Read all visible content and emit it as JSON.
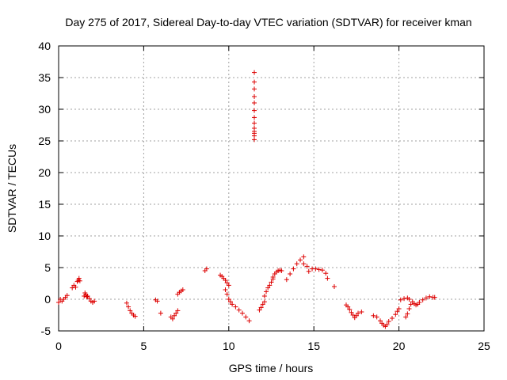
{
  "chart_data": {
    "type": "scatter",
    "title": "Day 275 of 2017, Sidereal Day-to-day VTEC variation (SDTVAR) for receiver kman",
    "xlabel": "GPS time / hours",
    "ylabel": "SDTVAR / TECUs",
    "xlim": [
      0,
      25
    ],
    "ylim": [
      -5,
      40
    ],
    "xticks": [
      0,
      5,
      10,
      15,
      20,
      25
    ],
    "yticks": [
      -5,
      0,
      5,
      10,
      15,
      20,
      25,
      30,
      35,
      40
    ],
    "grid": true,
    "marker": "plus",
    "color": "#dd0000",
    "series": [
      {
        "name": "SDTVAR",
        "x": [
          0.0,
          0.1,
          0.2,
          0.3,
          0.4,
          0.5,
          0.8,
          0.9,
          1.0,
          1.1,
          1.15,
          1.2,
          1.25,
          1.5,
          1.55,
          1.6,
          1.65,
          1.7,
          1.8,
          1.9,
          2.0,
          2.1,
          4.0,
          4.1,
          4.2,
          4.3,
          4.4,
          4.5,
          5.7,
          5.8,
          6.0,
          6.6,
          6.7,
          6.8,
          6.9,
          7.0,
          7.0,
          7.1,
          7.2,
          7.3,
          8.6,
          8.7,
          9.5,
          9.6,
          9.7,
          9.8,
          9.9,
          10.0,
          9.8,
          9.9,
          10.0,
          10.1,
          10.2,
          10.4,
          10.6,
          10.8,
          11.0,
          11.2,
          11.5,
          11.5,
          11.5,
          11.5,
          11.5,
          11.5,
          11.5,
          11.5,
          11.5,
          11.5,
          11.5,
          11.5,
          11.5,
          11.8,
          11.9,
          12.0,
          12.1,
          12.1,
          12.2,
          12.3,
          12.4,
          12.5,
          12.6,
          12.6,
          12.7,
          12.8,
          12.9,
          13.0,
          13.1,
          13.4,
          13.6,
          13.8,
          14.0,
          14.2,
          14.4,
          14.4,
          14.6,
          14.7,
          14.9,
          15.1,
          15.3,
          15.5,
          15.7,
          15.8,
          16.2,
          16.9,
          17.0,
          17.1,
          17.2,
          17.3,
          17.4,
          17.5,
          17.6,
          17.8,
          18.5,
          18.7,
          18.9,
          19.0,
          19.1,
          19.2,
          19.3,
          19.4,
          19.6,
          19.8,
          19.9,
          20.0,
          20.1,
          20.3,
          20.5,
          20.6,
          20.4,
          20.5,
          20.6,
          20.7,
          20.8,
          20.9,
          21.0,
          21.1,
          21.2,
          21.4,
          21.6,
          21.8,
          22.0,
          22.1
        ],
        "y": [
          -0.5,
          0.0,
          -0.3,
          0.0,
          0.3,
          0.6,
          1.8,
          2.2,
          1.9,
          2.8,
          3.0,
          3.3,
          2.9,
          0.5,
          1.0,
          0.7,
          0.4,
          0.5,
          0.1,
          -0.3,
          -0.5,
          -0.3,
          -0.6,
          -1.2,
          -1.8,
          -2.2,
          -2.5,
          -2.7,
          -0.1,
          -0.3,
          -2.2,
          -2.8,
          -3.1,
          -2.6,
          -2.2,
          -1.8,
          0.8,
          1.1,
          1.3,
          1.5,
          4.5,
          4.8,
          3.8,
          3.6,
          3.3,
          3.0,
          2.6,
          2.2,
          1.5,
          0.8,
          0.0,
          -0.4,
          -0.8,
          -1.2,
          -1.7,
          -2.2,
          -2.8,
          -3.4,
          35.8,
          34.3,
          33.2,
          32.0,
          31.0,
          29.8,
          28.7,
          27.8,
          27.0,
          26.5,
          26.2,
          25.8,
          25.2,
          -1.7,
          -1.3,
          -0.8,
          -0.4,
          0.5,
          1.2,
          1.8,
          2.2,
          2.7,
          3.2,
          3.5,
          4.0,
          4.3,
          4.5,
          4.6,
          4.5,
          3.1,
          4.0,
          4.8,
          5.6,
          6.2,
          6.7,
          5.6,
          5.2,
          4.4,
          4.8,
          4.8,
          4.7,
          4.6,
          4.1,
          3.3,
          2.0,
          -0.9,
          -1.2,
          -1.6,
          -2.1,
          -2.5,
          -2.9,
          -2.6,
          -2.2,
          -2.0,
          -2.6,
          -2.8,
          -3.4,
          -3.8,
          -4.1,
          -4.3,
          -4.0,
          -3.5,
          -3.0,
          -2.4,
          -1.9,
          -1.5,
          -0.1,
          0.1,
          0.2,
          0.0,
          -2.8,
          -2.3,
          -1.5,
          -0.8,
          -0.4,
          -0.7,
          -0.9,
          -0.8,
          -0.5,
          -0.1,
          0.2,
          0.4,
          0.3,
          0.3
        ]
      }
    ]
  }
}
